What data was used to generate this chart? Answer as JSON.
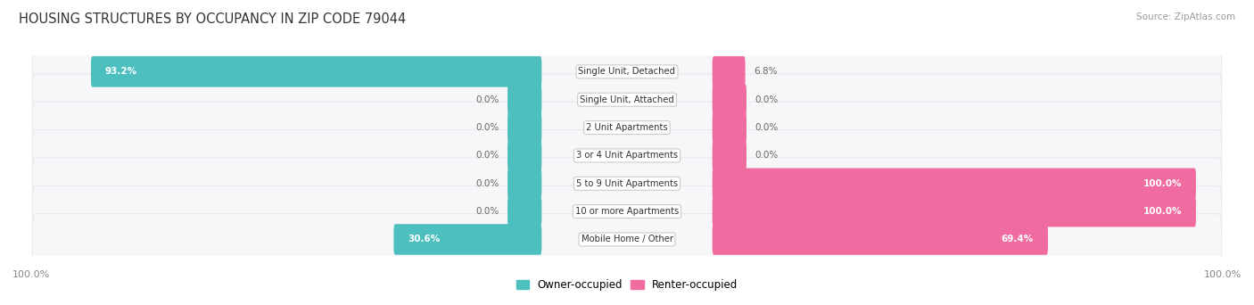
{
  "title": "HOUSING STRUCTURES BY OCCUPANCY IN ZIP CODE 79044",
  "source": "Source: ZipAtlas.com",
  "categories": [
    "Single Unit, Detached",
    "Single Unit, Attached",
    "2 Unit Apartments",
    "3 or 4 Unit Apartments",
    "5 to 9 Unit Apartments",
    "10 or more Apartments",
    "Mobile Home / Other"
  ],
  "owner_values": [
    93.2,
    0.0,
    0.0,
    0.0,
    0.0,
    0.0,
    30.6
  ],
  "renter_values": [
    6.8,
    0.0,
    0.0,
    0.0,
    100.0,
    100.0,
    69.4
  ],
  "owner_color": "#4dbfbf",
  "renter_color": "#f06ba0",
  "row_bg_color": "#e8e8ee",
  "row_fill_color": "#f7f7fa",
  "label_color": "#666666",
  "title_color": "#333333",
  "owner_label": "Owner-occupied",
  "renter_label": "Renter-occupied",
  "axis_label_left": "100.0%",
  "axis_label_right": "100.0%",
  "stub_size": 6.0,
  "max_val": 100,
  "figsize": [
    14.06,
    3.42
  ],
  "dpi": 100
}
